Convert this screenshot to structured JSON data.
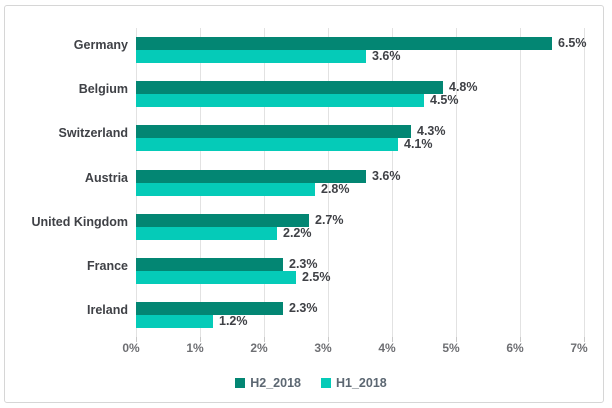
{
  "chart_data": {
    "type": "bar",
    "orientation": "horizontal",
    "title": "",
    "categories": [
      "Germany",
      "Belgium",
      "Switzerland",
      "Austria",
      "United Kingdom",
      "France",
      "Ireland"
    ],
    "series": [
      {
        "name": "H2_2018",
        "color": "#038673",
        "values": [
          6.5,
          4.8,
          4.3,
          3.6,
          2.7,
          2.3,
          2.3
        ],
        "labels": [
          "6.5%",
          "4.8%",
          "4.3%",
          "3.6%",
          "2.7%",
          "2.3%",
          "2.3%"
        ]
      },
      {
        "name": "H1_2018",
        "color": "#05cbb8",
        "values": [
          3.6,
          4.5,
          4.1,
          2.8,
          2.2,
          2.5,
          1.2
        ],
        "labels": [
          "3.6%",
          "4.5%",
          "4.1%",
          "2.8%",
          "2.2%",
          "2.5%",
          "1.2%"
        ]
      }
    ],
    "xlim": [
      0,
      7
    ],
    "x_ticks": [
      "0%",
      "1%",
      "2%",
      "3%",
      "4%",
      "5%",
      "6%",
      "7%"
    ],
    "grid": true,
    "legend_position": "bottom",
    "colors": {
      "gridline": "#e2e2e2",
      "frame_border": "#d6d6d6",
      "label_text": "#3f4146",
      "axis_text": "#6e6f73",
      "legend_text": "#5c6772"
    }
  }
}
